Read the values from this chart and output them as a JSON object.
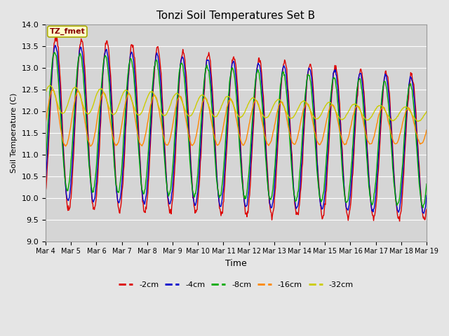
{
  "title": "Tonzi Soil Temperatures Set B",
  "xlabel": "Time",
  "ylabel": "Soil Temperature (C)",
  "annotation": "TZ_fmet",
  "ylim": [
    9.0,
    14.0
  ],
  "yticks": [
    9.0,
    9.5,
    10.0,
    10.5,
    11.0,
    11.5,
    12.0,
    12.5,
    13.0,
    13.5,
    14.0
  ],
  "xtick_labels": [
    "Mar 4",
    "Mar 5",
    "Mar 6",
    "Mar 7",
    "Mar 8",
    "Mar 9",
    "Mar 10",
    "Mar 11",
    "Mar 12",
    "Mar 13",
    "Mar 14",
    "Mar 15",
    "Mar 16",
    "Mar 17",
    "Mar 18",
    "Mar 19"
  ],
  "series_colors": {
    "-2cm": "#dd0000",
    "-4cm": "#0000cc",
    "-8cm": "#00aa00",
    "-16cm": "#ff8800",
    "-32cm": "#cccc00"
  },
  "series_labels": [
    "-2cm",
    "-4cm",
    "-8cm",
    "-16cm",
    "-32cm"
  ],
  "background_color": "#e5e5e5",
  "plot_bg_color": "#d5d5d5",
  "grid_color": "#ffffff",
  "n_points": 720,
  "time_days": 15
}
